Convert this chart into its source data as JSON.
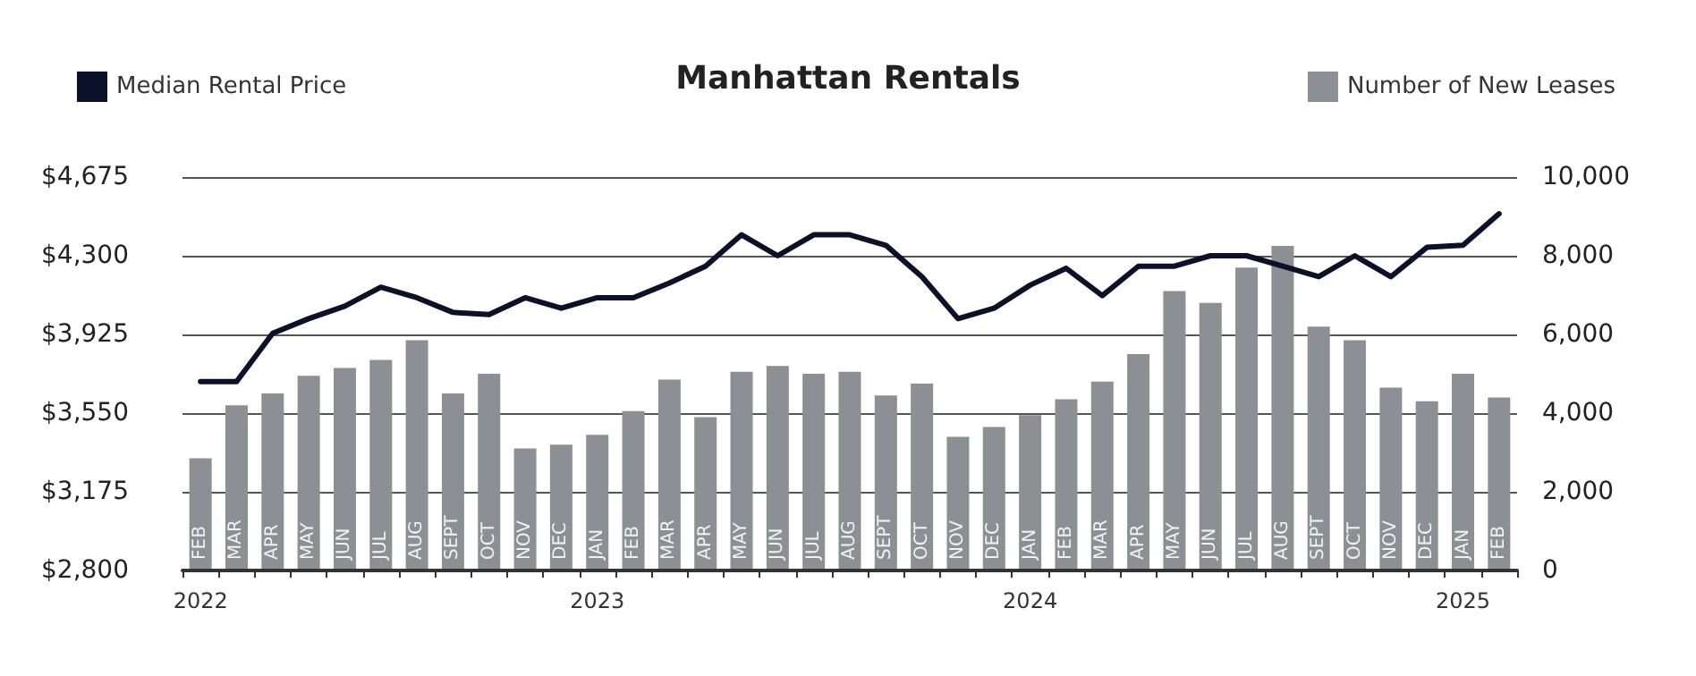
{
  "chart_data": {
    "type": "bar",
    "title": "Manhattan Rentals",
    "categories": [
      "FEB",
      "MAR",
      "APR",
      "MAY",
      "JUN",
      "JUL",
      "AUG",
      "SEPT",
      "OCT",
      "NOV",
      "DEC",
      "JAN",
      "FEB",
      "MAR",
      "APR",
      "MAY",
      "JUN",
      "JUL",
      "AUG",
      "SEPT",
      "OCT",
      "NOV",
      "DEC",
      "JAN",
      "FEB",
      "MAR",
      "APR",
      "MAY",
      "JUN",
      "JUL",
      "AUG",
      "SEPT",
      "OCT",
      "NOV",
      "DEC",
      "JAN",
      "FEB"
    ],
    "series": [
      {
        "name": "Median Rental Price",
        "type": "line",
        "color": "#0a1128",
        "values": [
          3700,
          3700,
          3930,
          4000,
          4060,
          4150,
          4100,
          4030,
          4020,
          4100,
          4050,
          4100,
          4100,
          4170,
          4250,
          4400,
          4300,
          4400,
          4400,
          4350,
          4200,
          4000,
          4050,
          4160,
          4240,
          4110,
          4250,
          4250,
          4300,
          4300,
          4250,
          4200,
          4300,
          4200,
          4340,
          4350,
          4500
        ]
      },
      {
        "name": "Number of New Leases",
        "axis": "y2",
        "color": "#8c8f94",
        "values": [
          2850,
          4200,
          4500,
          4950,
          5150,
          5350,
          5850,
          4500,
          5000,
          3100,
          3200,
          3450,
          4050,
          4850,
          3900,
          5050,
          5200,
          5000,
          5050,
          4450,
          4750,
          3400,
          3650,
          3950,
          4350,
          4800,
          5500,
          7100,
          6800,
          7700,
          8250,
          6200,
          5850,
          4650,
          4300,
          5000,
          4400
        ]
      }
    ],
    "ylim": [
      2800,
      4675
    ],
    "yticks": [
      {
        "value": 2800,
        "label": "$2,800"
      },
      {
        "value": 3175,
        "label": "$3,175"
      },
      {
        "value": 3550,
        "label": "$3,550"
      },
      {
        "value": 3925,
        "label": "$3,925"
      },
      {
        "value": 4300,
        "label": "$4,300"
      },
      {
        "value": 4675,
        "label": "$4,675"
      }
    ],
    "y2lim": [
      0,
      10000
    ],
    "y2ticks": [
      0,
      {
        "value": 2000,
        "label": "2,000"
      },
      {
        "value": 4000,
        "label": "4,000"
      },
      {
        "value": 6000,
        "label": "6,000"
      },
      {
        "value": 8000,
        "label": "8,000"
      },
      {
        "value": 10000,
        "label": "10,000"
      }
    ],
    "grid": "y",
    "legend": "top",
    "marker": "none",
    "line_style": "solid",
    "annotations": [
      "2022",
      "2023",
      "2024",
      "2025"
    ]
  }
}
